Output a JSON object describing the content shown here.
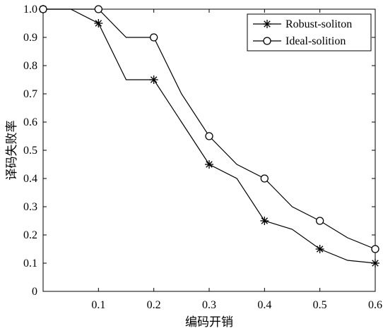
{
  "chart_data": {
    "type": "line",
    "xlabel": "编码开销",
    "ylabel": "译码失败率",
    "xlim": [
      0,
      0.6
    ],
    "ylim": [
      0,
      1.0
    ],
    "xticks": [
      "0.1",
      "0.2",
      "0.3",
      "0.4",
      "0.5",
      "0.6"
    ],
    "yticks": [
      "0",
      "0.1",
      "0.2",
      "0.3",
      "0.4",
      "0.5",
      "0.6",
      "0.7",
      "0.8",
      "0.9",
      "1.0"
    ],
    "grid": false,
    "legend_position": "top-right",
    "series": [
      {
        "name": "Robust-soliton",
        "marker": "asterisk",
        "x": [
          0,
          0.05,
          0.1,
          0.15,
          0.2,
          0.25,
          0.3,
          0.35,
          0.4,
          0.45,
          0.5,
          0.55,
          0.6
        ],
        "y": [
          1.0,
          1.0,
          0.95,
          0.75,
          0.75,
          0.6,
          0.45,
          0.4,
          0.25,
          0.22,
          0.15,
          0.11,
          0.1
        ],
        "marked_x": [
          0,
          0.1,
          0.2,
          0.3,
          0.4,
          0.5,
          0.6
        ]
      },
      {
        "name": "Ideal-solition",
        "marker": "circle",
        "x": [
          0,
          0.05,
          0.1,
          0.15,
          0.2,
          0.25,
          0.3,
          0.35,
          0.4,
          0.45,
          0.5,
          0.55,
          0.6
        ],
        "y": [
          1.0,
          1.0,
          1.0,
          0.9,
          0.9,
          0.7,
          0.55,
          0.45,
          0.4,
          0.3,
          0.25,
          0.19,
          0.15
        ],
        "marked_x": [
          0,
          0.1,
          0.2,
          0.3,
          0.4,
          0.5,
          0.6
        ]
      }
    ]
  }
}
